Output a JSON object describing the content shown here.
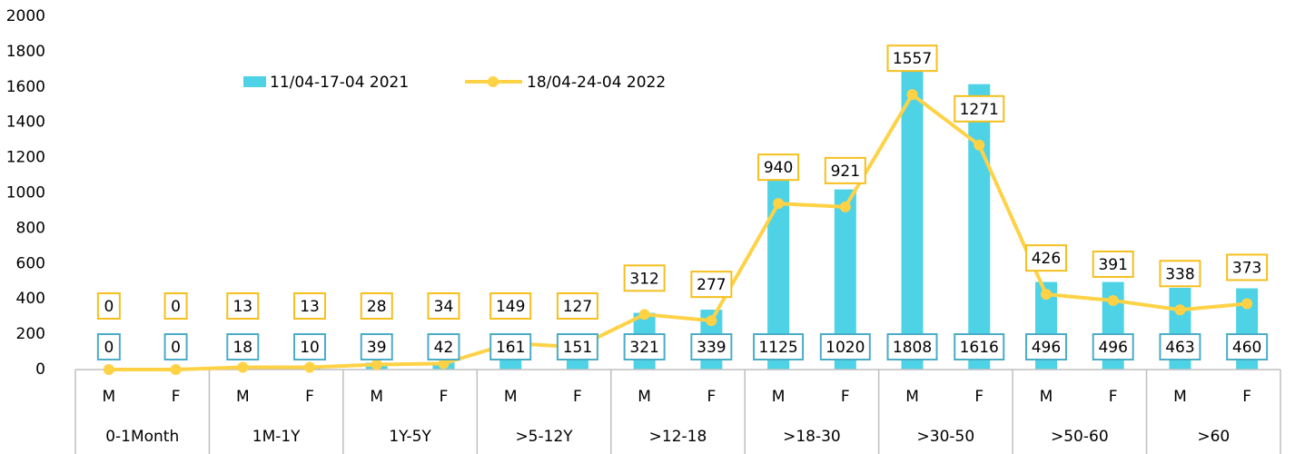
{
  "chart_data": {
    "type": "bar_line",
    "categories": [
      "M",
      "F",
      "M",
      "F",
      "M",
      "F",
      "M",
      "F",
      "M",
      "F",
      "M",
      "F",
      "M",
      "F",
      "M",
      "F",
      "M",
      "F"
    ],
    "groups": [
      "0-1Month",
      "1M-1Y",
      "1Y-5Y",
      ">5-12Y",
      ">12-18",
      ">18-30",
      ">30-50",
      ">50-60",
      ">60"
    ],
    "series": [
      {
        "name": "11/04-17-04 2021",
        "type": "bar",
        "color": "#4dd2e6",
        "label_border": "#4bacc6",
        "values": [
          0,
          0,
          18,
          10,
          39,
          42,
          161,
          151,
          321,
          339,
          1125,
          1020,
          1808,
          1616,
          496,
          496,
          463,
          460
        ]
      },
      {
        "name": "18/04-24-04 2022",
        "type": "line",
        "color": "#ffd246",
        "label_border": "#f5bf1e",
        "values": [
          0,
          0,
          13,
          13,
          28,
          34,
          149,
          127,
          312,
          277,
          940,
          921,
          1557,
          1271,
          426,
          391,
          338,
          373
        ]
      }
    ],
    "ylim": [
      0,
      2000
    ],
    "yticks": [
      0,
      200,
      400,
      600,
      800,
      1000,
      1200,
      1400,
      1600,
      1800,
      2000
    ],
    "grid": false
  }
}
